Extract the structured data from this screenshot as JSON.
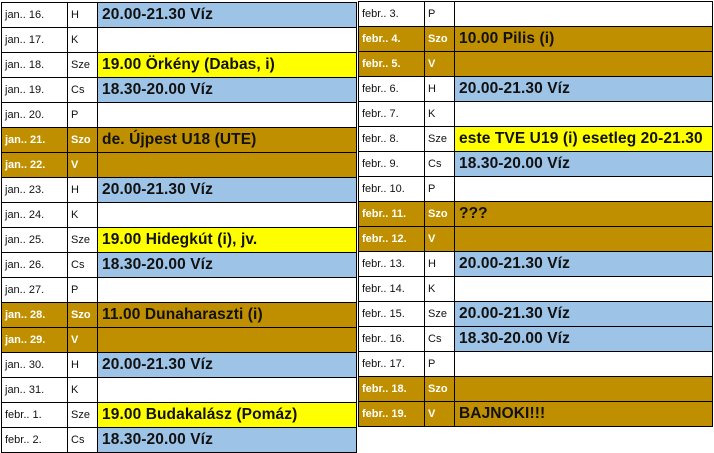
{
  "colors": {
    "blue": "#9dc3e6",
    "yellow": "#ffff00",
    "weekend": "#bf8f00"
  },
  "left": [
    {
      "date": "jan.. 16.",
      "day": "H",
      "event": "20.00-21.30 Víz",
      "fill": "blue",
      "weekend": false
    },
    {
      "date": "jan.. 17.",
      "day": "K",
      "event": "",
      "fill": "",
      "weekend": false
    },
    {
      "date": "jan.. 18.",
      "day": "Sze",
      "event": "19.00 Örkény (Dabas, i)",
      "fill": "yellow",
      "weekend": false
    },
    {
      "date": "jan.. 19.",
      "day": "Cs",
      "event": "18.30-20.00 Víz",
      "fill": "blue",
      "weekend": false
    },
    {
      "date": "jan.. 20.",
      "day": "P",
      "event": "",
      "fill": "",
      "weekend": false
    },
    {
      "date": "jan.. 21.",
      "day": "Szo",
      "event": "de. Újpest U18 (UTE)",
      "fill": "yellow",
      "weekend": true
    },
    {
      "date": "jan.. 22.",
      "day": "V",
      "event": "",
      "fill": "",
      "weekend": true
    },
    {
      "date": "jan.. 23.",
      "day": "H",
      "event": "20.00-21.30 Víz",
      "fill": "blue",
      "weekend": false
    },
    {
      "date": "jan.. 24.",
      "day": "K",
      "event": "",
      "fill": "",
      "weekend": false
    },
    {
      "date": "jan.. 25.",
      "day": "Sze",
      "event": "19.00 Hidegkút (i), jv.",
      "fill": "yellow",
      "weekend": false
    },
    {
      "date": "jan.. 26.",
      "day": "Cs",
      "event": "18.30-20.00 Víz",
      "fill": "blue",
      "weekend": false
    },
    {
      "date": "jan.. 27.",
      "day": "P",
      "event": "",
      "fill": "",
      "weekend": false
    },
    {
      "date": "jan.. 28.",
      "day": "Szo",
      "event": "11.00 Dunaharaszti (i)",
      "fill": "yellow",
      "weekend": true
    },
    {
      "date": "jan.. 29.",
      "day": "V",
      "event": "",
      "fill": "",
      "weekend": true
    },
    {
      "date": "jan.. 30.",
      "day": "H",
      "event": "20.00-21.30 Víz",
      "fill": "blue",
      "weekend": false
    },
    {
      "date": "jan.. 31.",
      "day": "K",
      "event": "",
      "fill": "",
      "weekend": false
    },
    {
      "date": "febr.. 1.",
      "day": "Sze",
      "event": "19.00 Budakalász (Pomáz)",
      "fill": "yellow",
      "weekend": false
    },
    {
      "date": "febr.. 2.",
      "day": "Cs",
      "event": "18.30-20.00 Víz",
      "fill": "blue",
      "weekend": false
    }
  ],
  "right": [
    {
      "date": "febr.. 3.",
      "day": "P",
      "event": "",
      "fill": "",
      "weekend": false
    },
    {
      "date": "febr.. 4.",
      "day": "Szo",
      "event": "10.00 Pilis (i)",
      "fill": "yellow",
      "weekend": true
    },
    {
      "date": "febr.. 5.",
      "day": "V",
      "event": "",
      "fill": "",
      "weekend": true
    },
    {
      "date": "febr.. 6.",
      "day": "H",
      "event": "20.00-21.30 Víz",
      "fill": "blue",
      "weekend": false
    },
    {
      "date": "febr.. 7.",
      "day": "K",
      "event": "",
      "fill": "",
      "weekend": false
    },
    {
      "date": "febr.. 8.",
      "day": "Sze",
      "event": "este TVE U19 (i) esetleg 20-21.30",
      "fill": "yellow",
      "weekend": false
    },
    {
      "date": "febr.. 9.",
      "day": "Cs",
      "event": "18.30-20.00 Víz",
      "fill": "blue",
      "weekend": false
    },
    {
      "date": "febr.. 10.",
      "day": "P",
      "event": "",
      "fill": "",
      "weekend": false
    },
    {
      "date": "febr.. 11.",
      "day": "Szo",
      "event": "???",
      "fill": "yellow",
      "weekend": true
    },
    {
      "date": "febr.. 12.",
      "day": "V",
      "event": "",
      "fill": "",
      "weekend": true
    },
    {
      "date": "febr.. 13.",
      "day": "H",
      "event": "20.00-21.30 Víz",
      "fill": "blue",
      "weekend": false
    },
    {
      "date": "febr.. 14.",
      "day": "K",
      "event": "",
      "fill": "",
      "weekend": false
    },
    {
      "date": "febr.. 15.",
      "day": "Sze",
      "event": "20.00-21.30 Víz",
      "fill": "blue",
      "weekend": false
    },
    {
      "date": "febr.. 16.",
      "day": "Cs",
      "event": "18.30-20.00 Víz",
      "fill": "blue",
      "weekend": false
    },
    {
      "date": "febr.. 17.",
      "day": "P",
      "event": "",
      "fill": "",
      "weekend": false
    },
    {
      "date": "febr.. 18.",
      "day": "Szo",
      "event": "",
      "fill": "",
      "weekend": true
    },
    {
      "date": "febr.. 19.",
      "day": "V",
      "event": "BAJNOKI!!!",
      "fill": "",
      "weekend": true
    }
  ]
}
